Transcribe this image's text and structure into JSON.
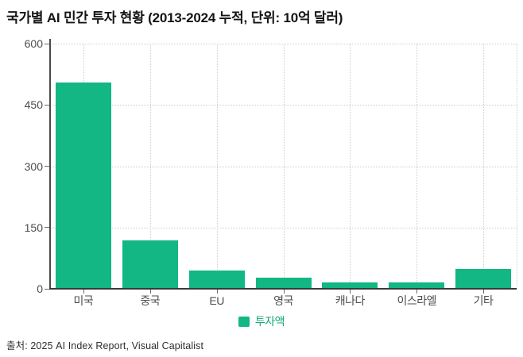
{
  "page": {
    "source": "출처: 2025 AI Index Report, Visual Capitalist"
  },
  "chart_data": {
    "type": "bar",
    "title": "국가별 AI 민간 투자 현황 (2013-2024 누적, 단위: 10억 달러)",
    "subtitle": "",
    "categories": [
      "미국",
      "중국",
      "EU",
      "영국",
      "캐나다",
      "이스라엘",
      "기타"
    ],
    "series": [
      {
        "name": "투자액",
        "values": [
          505,
          119,
          45,
          28,
          15,
          15,
          49
        ]
      }
    ],
    "xlabel": "",
    "ylabel": "",
    "ylim": [
      0,
      600
    ],
    "yticks": [
      0,
      150,
      300,
      450,
      600
    ],
    "grid": "dotted horizontal and vertical gridlines",
    "legend_position": "bottom-center",
    "colors": {
      "bar": "#12b783",
      "legend_text": "#15a57c",
      "gridline": "#cfcfcf",
      "axis": "#4a4a4a",
      "tick_label": "#4d4d4d",
      "title": "#141414"
    }
  }
}
